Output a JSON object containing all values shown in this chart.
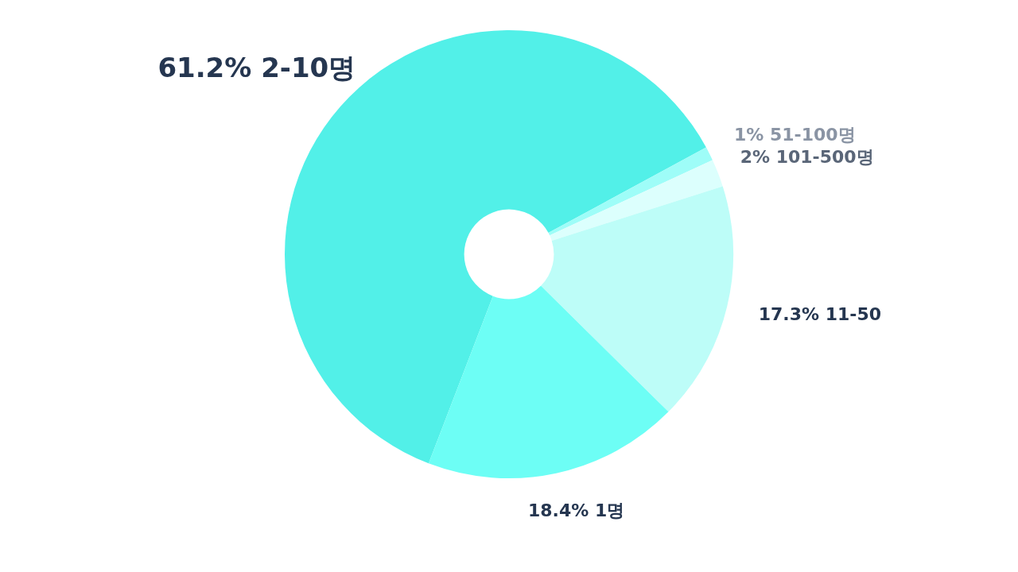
{
  "chart_data": {
    "type": "donut",
    "categories": [
      "2-10명",
      "51-100명",
      "101-500명",
      "11-50",
      "1명"
    ],
    "values": [
      61.2,
      1,
      2,
      17.3,
      18.4
    ],
    "value_labels": [
      "61.2%",
      "1%",
      "2%",
      "17.3%",
      "18.4%"
    ],
    "colors": [
      "#52f0e8",
      "#9efdf8",
      "#dcfffd",
      "#bdfdf8",
      "#6dfef5"
    ],
    "legend": false
  }
}
